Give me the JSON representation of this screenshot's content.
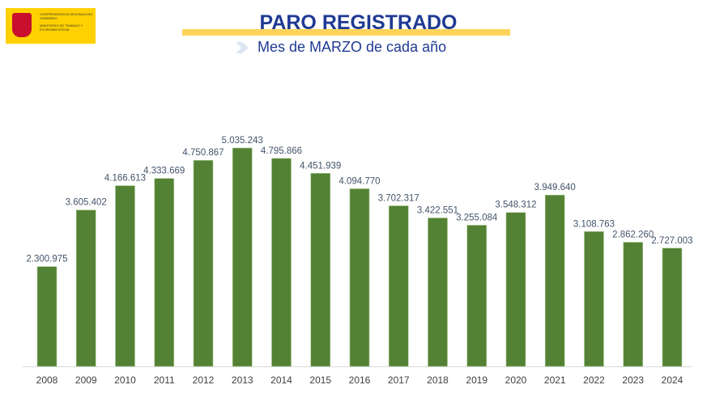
{
  "logo": {
    "line1": "VICEPRESIDENCIA SEGUNDA DEL GOBIERNO",
    "line2": "MINISTERIO DE TRABAJO Y ECONOMÍA SOCIAL"
  },
  "colors": {
    "bar": "#548235",
    "title": "#1f3a93",
    "accent": "#fdd35a"
  },
  "chart_data": {
    "type": "bar",
    "title": "PARO REGISTRADO",
    "subtitle": "Mes de MARZO de cada año",
    "categories": [
      "2008",
      "2009",
      "2010",
      "2011",
      "2012",
      "2013",
      "2014",
      "2015",
      "2016",
      "2017",
      "2018",
      "2019",
      "2020",
      "2021",
      "2022",
      "2023",
      "2024"
    ],
    "values": [
      2300975,
      3605402,
      4166613,
      4333669,
      4750867,
      5035243,
      4795866,
      4451939,
      4094770,
      3702317,
      3422551,
      3255084,
      3548312,
      3949640,
      3108763,
      2862260,
      2727003
    ],
    "labels": [
      "2.300.975",
      "3.605.402",
      "4.166.613",
      "4.333.669",
      "4.750.867",
      "5.035.243",
      "4.795.866",
      "4.451.939",
      "4.094.770",
      "3.702.317",
      "3.422.551",
      "3.255.084",
      "3.548.312",
      "3.949.640",
      "3.108.763",
      "2.862.260",
      "2.727.003"
    ],
    "ylim": [
      0,
      5035243
    ],
    "grid": false,
    "xlabel": "",
    "ylabel": ""
  }
}
